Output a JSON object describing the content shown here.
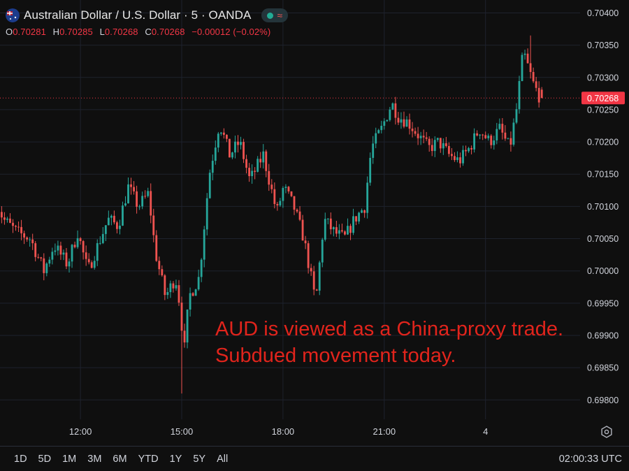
{
  "header": {
    "title": "Australian Dollar / U.S. Dollar · 5 · OANDA",
    "ohlc": {
      "o_label": "O",
      "o_value": "0.70281",
      "h_label": "H",
      "h_value": "0.70285",
      "l_label": "L",
      "l_value": "0.70268",
      "c_label": "C",
      "c_value": "0.70268",
      "change": "−0.00012 (−0.02%)"
    },
    "icons": [
      "au-flag-icon",
      "market-status-dot-icon",
      "wave-icon"
    ]
  },
  "annotation": {
    "line1": "AUD is viewed as a China-proxy trade.",
    "line2": "Subdued movement today."
  },
  "bottom_bar": {
    "ranges": [
      "1D",
      "5D",
      "1M",
      "3M",
      "6M",
      "YTD",
      "1Y",
      "5Y",
      "All"
    ],
    "clock": "02:00:33 UTC",
    "settings_icon": "gear-icon"
  },
  "colors": {
    "up": "#26a69a",
    "down": "#ef5350",
    "background": "#0f0f0f",
    "grid": "#1e222d",
    "annotation": "#e1241c",
    "price_label": "#f23645"
  },
  "chart_data": {
    "type": "candlestick",
    "symbol": "AUDUSD",
    "interval": "5",
    "y_ticks": [
      "0.70400",
      "0.70350",
      "0.70300",
      "0.70250",
      "0.70200",
      "0.70150",
      "0.70100",
      "0.70050",
      "0.70000",
      "0.69950",
      "0.69900",
      "0.69850",
      "0.69800"
    ],
    "ylim": [
      0.6977,
      0.7042
    ],
    "x_ticks": [
      {
        "label": "12:00",
        "hours": 12
      },
      {
        "label": "15:00",
        "hours": 15
      },
      {
        "label": "18:00",
        "hours": 18
      },
      {
        "label": "21:00",
        "hours": 21
      },
      {
        "label": "4",
        "hours": 24
      }
    ],
    "x_start_hours": 9.5,
    "bar_minutes": 5,
    "current_price": "0.70268",
    "current_price_value": 0.70268,
    "grid": true,
    "waypoints": [
      [
        9.5,
        0.7012
      ],
      [
        9.8,
        0.7008
      ],
      [
        10.2,
        0.7006
      ],
      [
        10.6,
        0.7005
      ],
      [
        11.0,
        0.7
      ],
      [
        11.3,
        0.7004
      ],
      [
        11.7,
        0.7001
      ],
      [
        12.0,
        0.7006
      ],
      [
        12.3,
        0.7
      ],
      [
        12.6,
        0.7004
      ],
      [
        12.9,
        0.7008
      ],
      [
        13.2,
        0.7007
      ],
      [
        13.5,
        0.7013
      ],
      [
        13.8,
        0.701
      ],
      [
        14.1,
        0.7012
      ],
      [
        14.3,
        0.7003
      ],
      [
        14.6,
        0.6996
      ],
      [
        14.9,
        0.6999
      ],
      [
        15.05,
        0.6994
      ],
      [
        15.15,
        0.6987
      ],
      [
        15.3,
        0.6996
      ],
      [
        15.6,
        0.6999
      ],
      [
        15.9,
        0.7015
      ],
      [
        16.2,
        0.7023
      ],
      [
        16.5,
        0.7018
      ],
      [
        16.8,
        0.702
      ],
      [
        17.1,
        0.7014
      ],
      [
        17.5,
        0.7018
      ],
      [
        17.9,
        0.7009
      ],
      [
        18.1,
        0.7013
      ],
      [
        18.4,
        0.701
      ],
      [
        18.7,
        0.7005
      ],
      [
        18.95,
        0.6998
      ],
      [
        19.05,
        0.6995
      ],
      [
        19.3,
        0.7008
      ],
      [
        19.6,
        0.7006
      ],
      [
        19.9,
        0.7005
      ],
      [
        20.2,
        0.7008
      ],
      [
        20.5,
        0.701
      ],
      [
        20.7,
        0.7019
      ],
      [
        21.0,
        0.7022
      ],
      [
        21.3,
        0.7026
      ],
      [
        21.5,
        0.7024
      ],
      [
        21.8,
        0.7023
      ],
      [
        22.1,
        0.7021
      ],
      [
        22.4,
        0.7019
      ],
      [
        22.7,
        0.702
      ],
      [
        23.0,
        0.7018
      ],
      [
        23.3,
        0.7017
      ],
      [
        23.6,
        0.7019
      ],
      [
        23.9,
        0.7022
      ],
      [
        24.2,
        0.702
      ],
      [
        24.5,
        0.7022
      ],
      [
        24.8,
        0.7019
      ],
      [
        25.0,
        0.7025
      ],
      [
        25.2,
        0.7034
      ],
      [
        25.5,
        0.7029
      ],
      [
        25.7,
        0.70268
      ]
    ],
    "min_low": {
      "time_hours": 15.0,
      "price": 0.6981
    },
    "max_high": {
      "time_hours": 25.3,
      "price": 0.70365
    }
  }
}
